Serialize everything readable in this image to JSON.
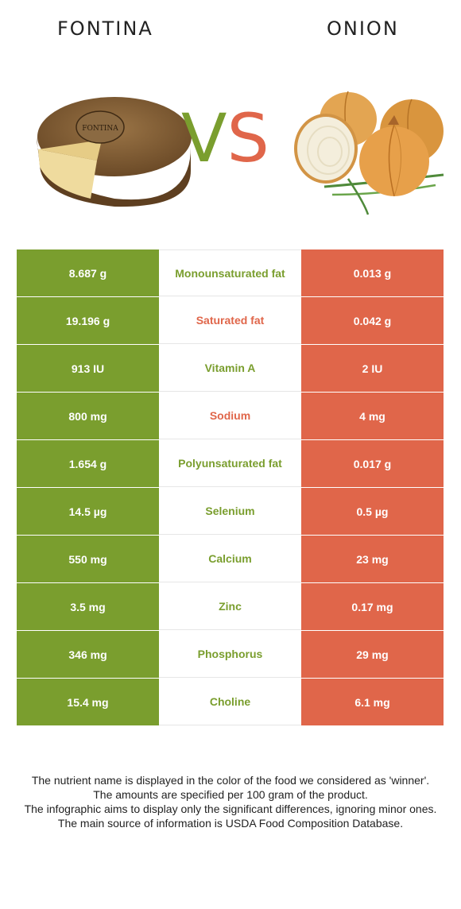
{
  "header": {
    "left_food": "FONTINA",
    "right_food": "ONION",
    "vs_v": "V",
    "vs_s": "S"
  },
  "colors": {
    "left_accent": "#7a9e2e",
    "right_accent": "#e0664a"
  },
  "images": {
    "left": "fontina-cheese-wheel-image",
    "right": "onion-bulbs-image",
    "left_label_text": "FONTINA"
  },
  "rows": [
    {
      "left": "8.687 g",
      "nutrient": "Monounsaturated fat",
      "right": "0.013 g",
      "winner": "left"
    },
    {
      "left": "19.196 g",
      "nutrient": "Saturated fat",
      "right": "0.042 g",
      "winner": "right"
    },
    {
      "left": "913 IU",
      "nutrient": "Vitamin A",
      "right": "2 IU",
      "winner": "left"
    },
    {
      "left": "800 mg",
      "nutrient": "Sodium",
      "right": "4 mg",
      "winner": "right"
    },
    {
      "left": "1.654 g",
      "nutrient": "Polyunsaturated fat",
      "right": "0.017 g",
      "winner": "left"
    },
    {
      "left": "14.5 µg",
      "nutrient": "Selenium",
      "right": "0.5 µg",
      "winner": "left"
    },
    {
      "left": "550 mg",
      "nutrient": "Calcium",
      "right": "23 mg",
      "winner": "left"
    },
    {
      "left": "3.5 mg",
      "nutrient": "Zinc",
      "right": "0.17 mg",
      "winner": "left"
    },
    {
      "left": "346 mg",
      "nutrient": "Phosphorus",
      "right": "29 mg",
      "winner": "left"
    },
    {
      "left": "15.4 mg",
      "nutrient": "Choline",
      "right": "6.1 mg",
      "winner": "left"
    }
  ],
  "footnote": {
    "line1": "The nutrient name is displayed in the color of the food we considered as 'winner'.",
    "line2": "The amounts are specified per 100 gram of the product.",
    "line3": "The infographic aims to display only the significant differences, ignoring minor ones.",
    "line4": "The main source of information is USDA Food Composition Database."
  }
}
